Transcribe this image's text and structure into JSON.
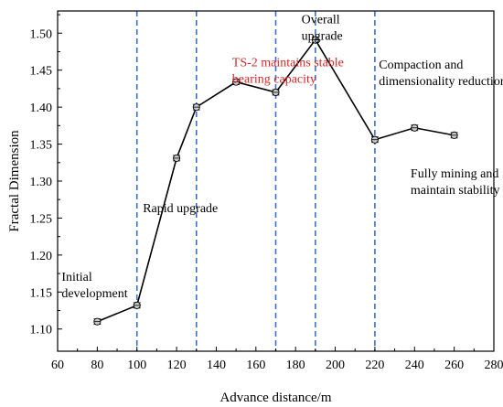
{
  "chart_data": {
    "type": "line",
    "xlabel": "Advance distance/m",
    "ylabel": "Fractal Dimension",
    "xlim": [
      60,
      280
    ],
    "ylim": [
      1.07,
      1.53
    ],
    "xticks": [
      60,
      80,
      100,
      120,
      140,
      160,
      180,
      200,
      220,
      240,
      260,
      280
    ],
    "yticks": [
      1.1,
      1.15,
      1.2,
      1.25,
      1.3,
      1.35,
      1.4,
      1.45,
      1.5
    ],
    "grid": false,
    "legend": "none",
    "series": [
      {
        "x": [
          80,
          100,
          120,
          130,
          150,
          170,
          190,
          220,
          240,
          260
        ],
        "y": [
          1.11,
          1.132,
          1.331,
          1.4,
          1.434,
          1.42,
          1.491,
          1.356,
          1.372,
          1.362
        ]
      }
    ],
    "phase_lines_x": [
      100,
      130,
      170,
      190,
      220
    ],
    "annotations": [
      {
        "lines": [
          "Initial",
          "development"
        ],
        "x": 62,
        "y": 1.165
      },
      {
        "lines": [
          "Rapid upgrade"
        ],
        "x": 103,
        "y": 1.258
      },
      {
        "lines": [
          "TS-2 maintains stable",
          "bearing capacity"
        ],
        "x": 148,
        "y": 1.455,
        "color": "#d62728"
      },
      {
        "lines": [
          "Overall",
          "upgrade"
        ],
        "x": 183,
        "y": 1.513
      },
      {
        "lines": [
          "Compaction and",
          "dimensionality reduction"
        ],
        "x": 222,
        "y": 1.452
      },
      {
        "lines": [
          "Fully mining and",
          "maintain stability"
        ],
        "x": 238,
        "y": 1.305
      }
    ],
    "colors": {
      "line": "#000000",
      "phase_lines": "#3b6fcc",
      "marker_fill": "#cccccc"
    }
  }
}
